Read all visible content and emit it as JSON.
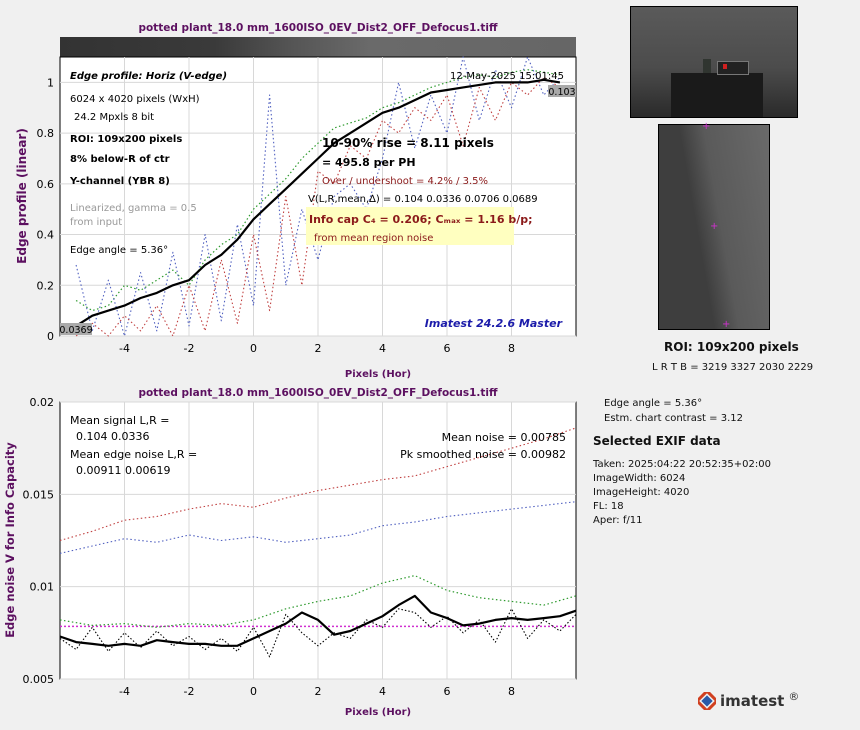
{
  "colors": {
    "title": "#5c1060",
    "axis_label": "#5c1060",
    "black": "#000000",
    "green": "#2e9a2e",
    "blue": "#5060c0",
    "red": "#c04040",
    "magenta": "#d030d0",
    "info_box": "#ffffc0",
    "imatest_label": "#1c1caa"
  },
  "chart_data": [
    {
      "type": "line",
      "title": "potted plant_18.0 mm_1600ISO_0EV_Dist2_OFF_Defocus1.tiff",
      "xlabel": "Pixels (Hor)",
      "ylabel": "Edge profile (linear)",
      "xlim": [
        -6,
        10
      ],
      "ylim": [
        0,
        1.1
      ],
      "xticks": [
        "-4",
        "-2",
        "0",
        "2",
        "4",
        "6",
        "8"
      ],
      "yticks": [
        "0",
        "0.2",
        "0.4",
        "0.6",
        "0.8",
        "1"
      ],
      "grid": true,
      "series": [
        {
          "style": "solid-black",
          "x": [
            -5.5,
            -5,
            -4.5,
            -4,
            -3.5,
            -3,
            -2.5,
            -2,
            -1.5,
            -1,
            -0.5,
            0,
            0.5,
            1,
            1.5,
            2,
            2.5,
            3,
            3.5,
            4,
            4.5,
            5,
            5.5,
            6,
            6.5,
            7,
            7.5,
            8,
            8.5,
            9,
            9.5
          ],
          "y": [
            0.04,
            0.08,
            0.1,
            0.12,
            0.15,
            0.17,
            0.2,
            0.22,
            0.28,
            0.32,
            0.38,
            0.46,
            0.52,
            0.58,
            0.64,
            0.7,
            0.76,
            0.8,
            0.84,
            0.88,
            0.9,
            0.93,
            0.96,
            0.97,
            0.98,
            0.99,
            1.0,
            1.0,
            1.0,
            1.01,
            1.0
          ]
        },
        {
          "style": "dotted-green",
          "x": [
            -5.5,
            -5,
            -4.5,
            -4,
            -3.5,
            -3,
            -2.5,
            -2,
            -1.5,
            -1,
            -0.5,
            0,
            0.5,
            1,
            1.5,
            2,
            2.5,
            3,
            3.5,
            4,
            4.5,
            5,
            5.5,
            6,
            6.5,
            7,
            7.5,
            8,
            8.5,
            9,
            9.5
          ],
          "y": [
            0.14,
            0.1,
            0.12,
            0.2,
            0.18,
            0.22,
            0.26,
            0.2,
            0.3,
            0.36,
            0.4,
            0.5,
            0.56,
            0.62,
            0.7,
            0.76,
            0.82,
            0.84,
            0.86,
            0.9,
            0.92,
            0.95,
            0.98,
            1.0,
            1.02,
            1.03,
            1.02,
            1.04,
            1.05,
            1.04,
            1.03
          ]
        },
        {
          "style": "dotted-blue",
          "x": [
            -5.5,
            -5,
            -4.5,
            -4,
            -3.5,
            -3,
            -2.5,
            -2,
            -1.5,
            -1,
            -0.5,
            0,
            0.5,
            1,
            1.5,
            2,
            2.5,
            3,
            3.5,
            4,
            4.5,
            5,
            5.5,
            6,
            6.5,
            7,
            7.5,
            8,
            8.5,
            9,
            9.5
          ],
          "y": [
            0.28,
            0.02,
            0.22,
            0.0,
            0.25,
            0.02,
            0.33,
            0.04,
            0.4,
            0.06,
            0.44,
            0.12,
            0.95,
            0.2,
            0.5,
            0.3,
            0.55,
            0.6,
            0.5,
            0.7,
            1.0,
            0.74,
            0.95,
            0.8,
            1.1,
            0.85,
            1.05,
            0.9,
            1.1,
            0.95,
            1.02
          ]
        },
        {
          "style": "dotted-red",
          "x": [
            -5.5,
            -5,
            -4.5,
            -4,
            -3.5,
            -3,
            -2.5,
            -2,
            -1.5,
            -1,
            -0.5,
            0,
            0.5,
            1,
            1.5,
            2,
            2.5,
            3,
            3.5,
            4,
            4.5,
            5,
            5.5,
            6,
            6.5,
            7,
            7.5,
            8,
            8.5,
            9,
            9.5
          ],
          "y": [
            0.0,
            0.05,
            0.0,
            0.08,
            0.02,
            0.12,
            0.0,
            0.2,
            0.02,
            0.3,
            0.05,
            0.4,
            0.1,
            0.55,
            0.2,
            0.65,
            0.6,
            0.75,
            0.7,
            0.85,
            0.8,
            0.9,
            0.85,
            0.95,
            0.75,
            0.98,
            0.85,
            1.0,
            0.95,
            1.02,
            0.98
          ]
        }
      ],
      "annotations": {
        "edge_profile": "Edge profile: Horiz (V-edge)",
        "timestamp": "12-May-2025 15:01:45",
        "dims": "6024 x 4020 pixels (WxH)",
        "mpxls": "24.2 Mpxls   8 bit",
        "roi": "ROI:  109x200 pixels",
        "pct": "8% below-R of ctr",
        "ychan": "Y-channel  (YBR 8)",
        "linear1": "Linearized, gamma = 0.5",
        "linear2": "from input",
        "angle": "Edge angle = 5.36°",
        "rise1": "10-90% rise = 8.11 pixels",
        "rise2": "= 495.8 per PH",
        "over": "Over / undershoot =  4.2% /  3.5%",
        "vlr": "V(L,R,mean,∆) = 0.104  0.0336  0.0706  0.0689",
        "info": "Info cap C₄ = 0.206;  Cₘₐₓ = 1.16 b/p;",
        "info2": "from mean region noise",
        "imatest": "Imatest 24.2.6 Master",
        "high_label": "0.103",
        "low_label": "0.0369"
      }
    },
    {
      "type": "line",
      "title": "potted plant_18.0 mm_1600ISO_0EV_Dist2_OFF_Defocus1.tiff",
      "xlabel": "Pixels (Hor)",
      "ylabel": "Edge noise V for Info Capacity",
      "xlim": [
        -6,
        10
      ],
      "ylim": [
        0.005,
        0.02
      ],
      "xticks": [
        "-4",
        "-2",
        "0",
        "2",
        "4",
        "6",
        "8"
      ],
      "yticks": [
        "0.005",
        "0.01",
        "0.015",
        "0.02"
      ],
      "grid": true,
      "mean_line": 0.00785,
      "series": [
        {
          "style": "solid-black",
          "x": [
            -6,
            -5.5,
            -5,
            -4.5,
            -4,
            -3.5,
            -3,
            -2.5,
            -2,
            -1.5,
            -1,
            -0.5,
            0,
            0.5,
            1,
            1.5,
            2,
            2.5,
            3,
            3.5,
            4,
            4.5,
            5,
            5.5,
            6,
            6.5,
            7,
            7.5,
            8,
            8.5,
            9,
            9.5,
            10
          ],
          "y": [
            0.0073,
            0.007,
            0.0069,
            0.0068,
            0.0069,
            0.0068,
            0.0071,
            0.007,
            0.0069,
            0.0069,
            0.0068,
            0.0068,
            0.0072,
            0.0076,
            0.008,
            0.0086,
            0.0082,
            0.0074,
            0.0076,
            0.008,
            0.0084,
            0.009,
            0.0095,
            0.0086,
            0.0083,
            0.0079,
            0.008,
            0.0082,
            0.0083,
            0.0082,
            0.0083,
            0.0084,
            0.0087
          ]
        },
        {
          "style": "dotted-black",
          "x": [
            -6,
            -5.5,
            -5,
            -4.5,
            -4,
            -3.5,
            -3,
            -2.5,
            -2,
            -1.5,
            -1,
            -0.5,
            0,
            0.5,
            1,
            1.5,
            2,
            2.5,
            3,
            3.5,
            4,
            4.5,
            5,
            5.5,
            6,
            6.5,
            7,
            7.5,
            8,
            8.5,
            9,
            9.5,
            10
          ],
          "y": [
            0.0072,
            0.0066,
            0.0078,
            0.0065,
            0.0075,
            0.0067,
            0.0076,
            0.0068,
            0.0073,
            0.0066,
            0.0072,
            0.0065,
            0.0078,
            0.0062,
            0.0085,
            0.0075,
            0.0068,
            0.0075,
            0.0072,
            0.0082,
            0.0078,
            0.0088,
            0.0086,
            0.0078,
            0.0084,
            0.0075,
            0.0082,
            0.007,
            0.0088,
            0.0072,
            0.0082,
            0.0076,
            0.0085
          ]
        },
        {
          "style": "dotted-green",
          "x": [
            -6,
            -5,
            -4,
            -3,
            -2,
            -1,
            0,
            1,
            2,
            3,
            4,
            5,
            6,
            7,
            8,
            9,
            10
          ],
          "y": [
            0.0082,
            0.0079,
            0.008,
            0.0078,
            0.008,
            0.0079,
            0.0082,
            0.0088,
            0.0092,
            0.0095,
            0.0102,
            0.0106,
            0.0098,
            0.0094,
            0.0092,
            0.009,
            0.0095
          ]
        },
        {
          "style": "dotted-blue",
          "x": [
            -6,
            -5,
            -4,
            -3,
            -2,
            -1,
            0,
            1,
            2,
            3,
            4,
            5,
            6,
            7,
            8,
            9,
            10
          ],
          "y": [
            0.0118,
            0.0122,
            0.0126,
            0.0124,
            0.0128,
            0.0125,
            0.0127,
            0.0124,
            0.0126,
            0.0128,
            0.0133,
            0.0135,
            0.0138,
            0.014,
            0.0142,
            0.0144,
            0.0146
          ]
        },
        {
          "style": "dotted-red",
          "x": [
            -6,
            -5,
            -4,
            -3,
            -2,
            -1,
            0,
            1,
            2,
            3,
            4,
            5,
            6,
            7,
            8,
            9,
            10
          ],
          "y": [
            0.0125,
            0.013,
            0.0136,
            0.0138,
            0.0142,
            0.0145,
            0.0143,
            0.0148,
            0.0152,
            0.0155,
            0.0158,
            0.016,
            0.0165,
            0.017,
            0.0175,
            0.018,
            0.0186
          ]
        }
      ],
      "annotations": {
        "mean_signal": "Mean signal L,R =",
        "mean_signal_vals": "0.104  0.0336",
        "mean_edge_noise": "Mean edge noise L,R =",
        "mean_edge_noise_vals": "0.00911  0.00619",
        "mean_noise": "Mean noise = 0.00785",
        "pk_noise": "Pk smoothed noise = 0.00982"
      }
    }
  ],
  "side": {
    "roi_title": "ROI:  109x200 pixels",
    "roi_coords": "L R  T B = 3219 3327  2030 2229",
    "edge_angle": "Edge angle = 5.36°",
    "contrast": "Estm. chart contrast = 3.12",
    "exif_title": "Selected EXIF data",
    "exif": [
      "Taken: 2025:04:22 20:52:35+02:00",
      "ImageWidth:  6024",
      "ImageHeight:  4020",
      "FL:    18",
      "Aper:  f/11"
    ],
    "logo": "imatest"
  }
}
